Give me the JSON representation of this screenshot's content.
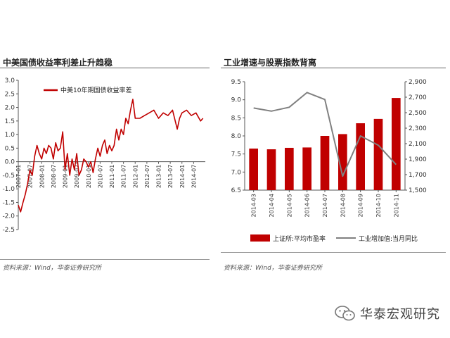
{
  "left": {
    "title": "中美国债收益率利差止升趋稳",
    "source": "资料来源：Wind，华泰证券研究所"
  },
  "right": {
    "title": "工业增速与股票指数背离",
    "source": "资料来源：Wind，华泰证券研究所"
  },
  "watermark": {
    "text": "华泰宏观研究",
    "icon": "wechat-icon"
  },
  "colors": {
    "red": "#c00000",
    "gray": "#808080"
  },
  "chart_data": [
    {
      "type": "line",
      "title": "中美国债收益率利差止升趋稳",
      "series": [
        {
          "name": "中美10年期国债收益率差",
          "color": "#c00000",
          "x": [
            2007.0,
            2007.1,
            2007.2,
            2007.3,
            2007.4,
            2007.5,
            2007.6,
            2007.7,
            2007.8,
            2007.9,
            2008.0,
            2008.1,
            2008.2,
            2008.3,
            2008.4,
            2008.5,
            2008.6,
            2008.7,
            2008.8,
            2008.9,
            2009.0,
            2009.1,
            2009.2,
            2009.3,
            2009.4,
            2009.5,
            2009.6,
            2009.7,
            2009.8,
            2009.9,
            2010.0,
            2010.1,
            2010.2,
            2010.3,
            2010.4,
            2010.5,
            2010.6,
            2010.7,
            2010.8,
            2010.9,
            2011.0,
            2011.1,
            2011.2,
            2011.3,
            2011.4,
            2011.5,
            2011.6,
            2011.7,
            2011.8,
            2011.9,
            2012.0,
            2012.2,
            2012.4,
            2012.6,
            2012.8,
            2013.0,
            2013.2,
            2013.4,
            2013.6,
            2013.8,
            2013.9,
            2014.0,
            2014.2,
            2014.4,
            2014.6,
            2014.8,
            2014.9
          ],
          "y": [
            -1.6,
            -1.85,
            -1.5,
            -1.2,
            -0.8,
            -0.3,
            -0.5,
            0.2,
            0.6,
            0.3,
            0.1,
            0.5,
            0.3,
            0.6,
            0.5,
            0.1,
            0.7,
            0.4,
            0.5,
            1.1,
            -0.3,
            0.3,
            -0.5,
            0.1,
            -0.3,
            0.3,
            -0.5,
            -0.3,
            0.1,
            0.0,
            -0.2,
            0.0,
            -0.4,
            0.1,
            0.5,
            0.2,
            0.6,
            0.8,
            0.3,
            0.6,
            0.4,
            0.6,
            1.2,
            0.8,
            1.2,
            1.0,
            1.6,
            1.4,
            1.9,
            2.3,
            1.6,
            1.6,
            1.7,
            1.8,
            1.9,
            1.6,
            1.8,
            1.7,
            1.9,
            1.2,
            1.6,
            1.8,
            1.9,
            1.7,
            1.8,
            1.5,
            1.6
          ]
        }
      ],
      "xticks": [
        "2007-01",
        "2007-07",
        "2008-01",
        "2008-07",
        "2009-01",
        "2009-07",
        "2010-01",
        "2010-07",
        "2011-01",
        "2011-07",
        "2012-01",
        "2012-07",
        "2013-01",
        "2013-07",
        "2014-01",
        "2014-07"
      ],
      "ylim": [
        -2.5,
        3.0
      ],
      "yticks": [
        3.0,
        2.5,
        2.0,
        1.5,
        1.0,
        0.5,
        0.0,
        -0.5,
        -1.0,
        -1.5,
        -2.0,
        -2.5
      ],
      "legend": "top-left",
      "grid": false
    },
    {
      "type": "bar",
      "title": "工业增速与股票指数背离",
      "categories": [
        "2014-03",
        "2014-04",
        "2014-05",
        "2014-06",
        "2014-07",
        "2014-08",
        "2014-09",
        "2014-10",
        "2014-11"
      ],
      "series": [
        {
          "name": "上证所:平均市盈率",
          "type": "bar",
          "axis": "left",
          "color": "#c00000",
          "values": [
            7.65,
            7.63,
            7.67,
            7.68,
            8.0,
            8.05,
            8.35,
            8.47,
            9.05
          ]
        },
        {
          "name": "工业增加值:当月同比",
          "type": "line",
          "axis": "right",
          "color": "#808080",
          "values": [
            2560,
            2520,
            2570,
            2760,
            2670,
            1680,
            2200,
            2080,
            1830
          ]
        }
      ],
      "ylim_left": [
        6.5,
        9.5
      ],
      "yticks_left": [
        9.5,
        9.0,
        8.5,
        8.0,
        7.5,
        7.0,
        6.5
      ],
      "ylim_right": [
        1500,
        2900
      ],
      "yticks_right": [
        2900,
        2700,
        2500,
        2300,
        2100,
        1900,
        1700,
        1500
      ],
      "legend": "bottom",
      "grid": false
    }
  ]
}
